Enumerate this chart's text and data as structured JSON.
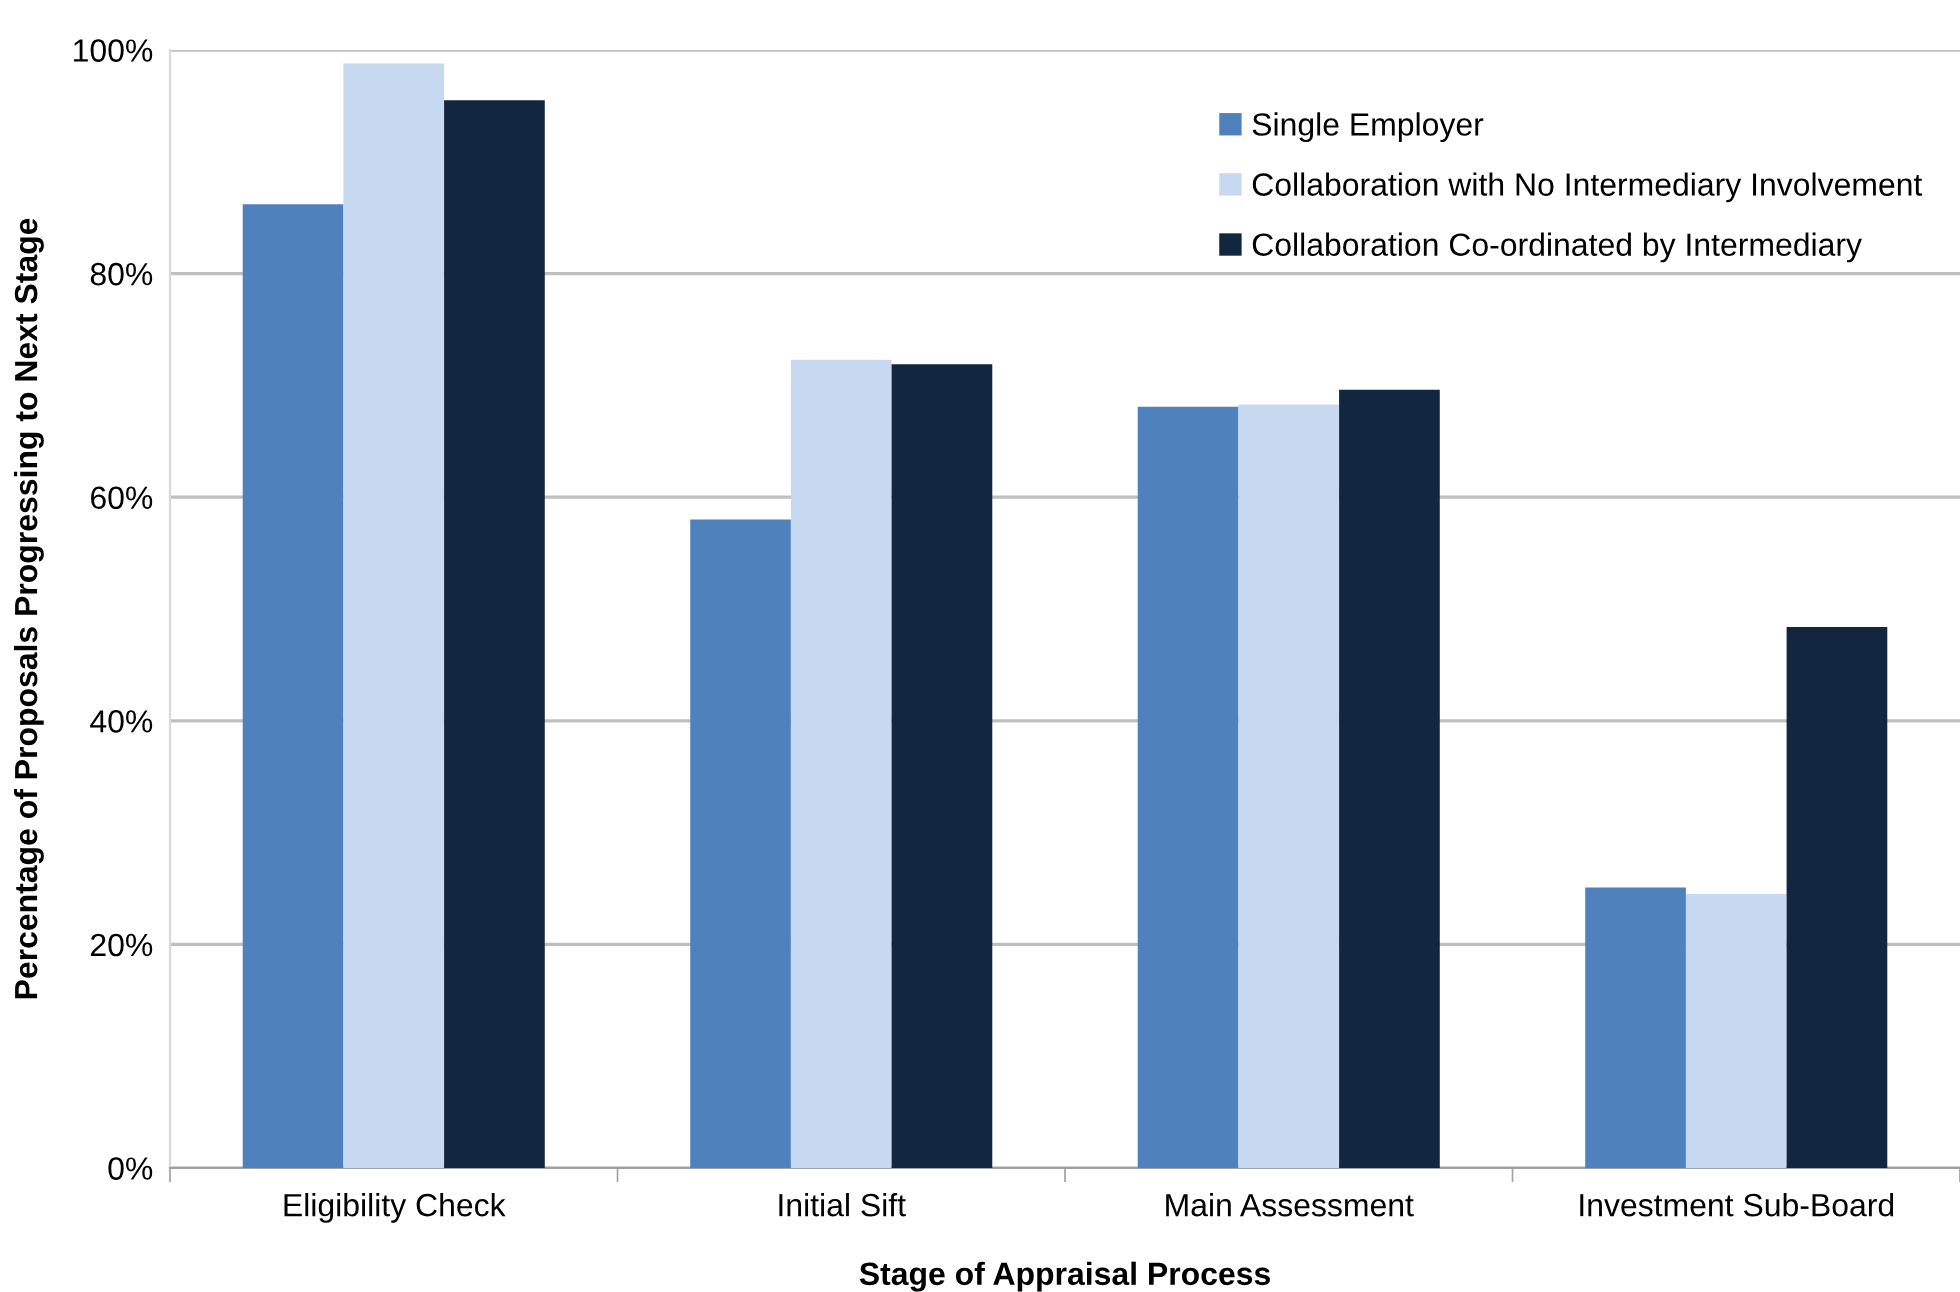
{
  "chart_data": {
    "type": "bar",
    "xlabel": "Stage of Appraisal Process",
    "ylabel": "Percentage of Proposals Progressing to Next Stage",
    "categories": [
      "Eligibility Check",
      "Initial Sift",
      "Main Assessment",
      "Investment Sub-Board"
    ],
    "series": [
      {
        "name": "Single Employer",
        "color": "#4f81bd",
        "values": [
          86.2,
          58.0,
          68.1,
          25.1
        ]
      },
      {
        "name": "Collaboration with No Intermediary Involvement",
        "color": "#c6d9f0",
        "values": [
          98.8,
          72.3,
          68.3,
          24.5
        ]
      },
      {
        "name": "Collaboration Co-ordinated by Intermediary",
        "color": "#12263f",
        "values": [
          95.5,
          71.9,
          69.6,
          48.4
        ]
      }
    ],
    "ylim": [
      0,
      100
    ],
    "yticks": [
      {
        "value": 0,
        "label": "0%"
      },
      {
        "value": 20,
        "label": "20%"
      },
      {
        "value": 40,
        "label": "40%"
      },
      {
        "value": 60,
        "label": "60%"
      },
      {
        "value": 80,
        "label": "80%"
      },
      {
        "value": 100,
        "label": "100%"
      }
    ],
    "grid": "y",
    "legend": "top right"
  }
}
